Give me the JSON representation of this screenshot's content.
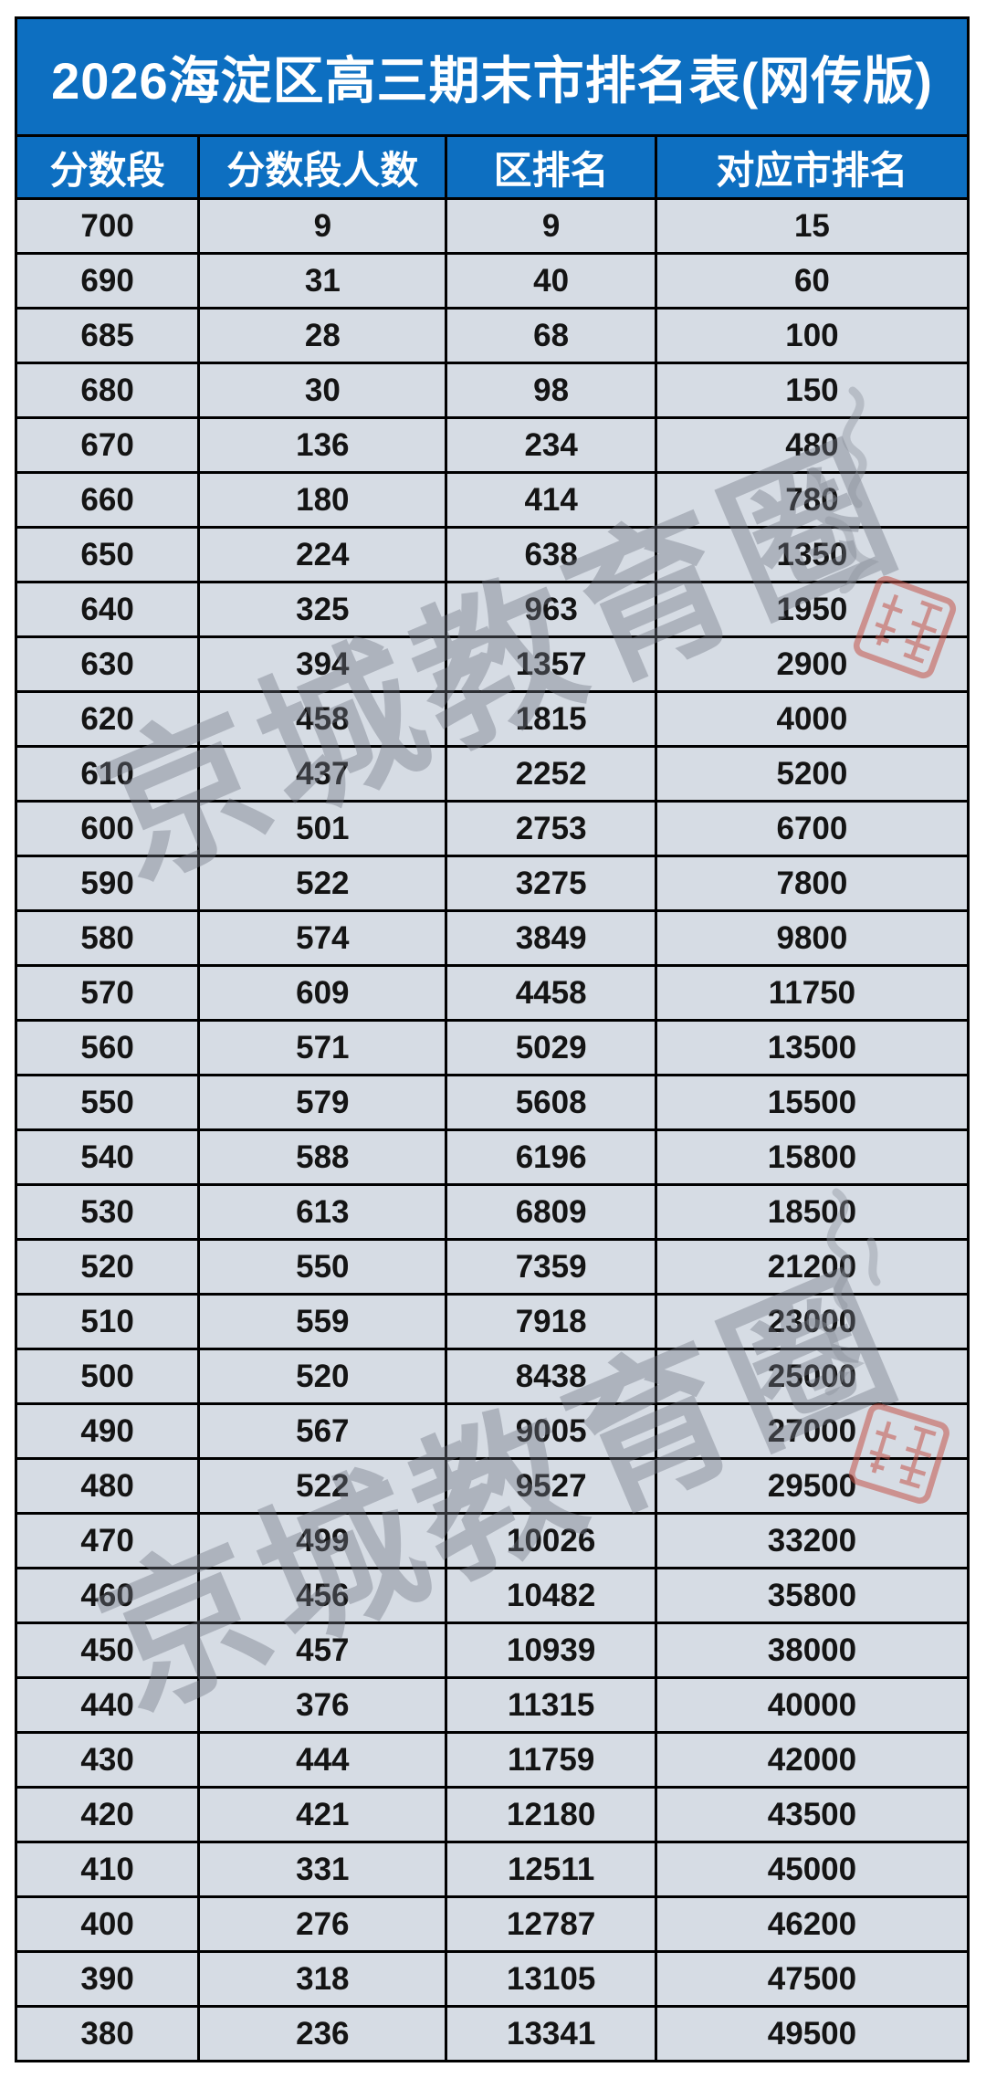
{
  "title": "2026海淀区高三期末市排名表(网传版)",
  "table": {
    "columns": [
      "分数段",
      "分数段人数",
      "区排名",
      "对应市排名"
    ],
    "rows": [
      [
        700,
        9,
        9,
        15
      ],
      [
        690,
        31,
        40,
        60
      ],
      [
        685,
        28,
        68,
        100
      ],
      [
        680,
        30,
        98,
        150
      ],
      [
        670,
        136,
        234,
        480
      ],
      [
        660,
        180,
        414,
        780
      ],
      [
        650,
        224,
        638,
        1350
      ],
      [
        640,
        325,
        963,
        1950
      ],
      [
        630,
        394,
        1357,
        2900
      ],
      [
        620,
        458,
        1815,
        4000
      ],
      [
        610,
        437,
        2252,
        5200
      ],
      [
        600,
        501,
        2753,
        6700
      ],
      [
        590,
        522,
        3275,
        7800
      ],
      [
        580,
        574,
        3849,
        9800
      ],
      [
        570,
        609,
        4458,
        11750
      ],
      [
        560,
        571,
        5029,
        13500
      ],
      [
        550,
        579,
        5608,
        15500
      ],
      [
        540,
        588,
        6196,
        15800
      ],
      [
        530,
        613,
        6809,
        18500
      ],
      [
        520,
        550,
        7359,
        21200
      ],
      [
        510,
        559,
        7918,
        23000
      ],
      [
        500,
        520,
        8438,
        25000
      ],
      [
        490,
        567,
        9005,
        27000
      ],
      [
        480,
        522,
        9527,
        29500
      ],
      [
        470,
        499,
        10026,
        33200
      ],
      [
        460,
        456,
        10482,
        35800
      ],
      [
        450,
        457,
        10939,
        38000
      ],
      [
        440,
        376,
        11315,
        40000
      ],
      [
        430,
        444,
        11759,
        42000
      ],
      [
        420,
        421,
        12180,
        43500
      ],
      [
        410,
        331,
        12511,
        45000
      ],
      [
        400,
        276,
        12787,
        46200
      ],
      [
        390,
        318,
        13105,
        47500
      ],
      [
        380,
        236,
        13341,
        49500
      ]
    ]
  },
  "watermark": {
    "text": "京城教育圈"
  },
  "colors": {
    "header_blue": "#0d6fc1",
    "row_background": "#d6dce4",
    "border_black": "#000000",
    "title_text": "#ffffff",
    "cell_text": "#141414",
    "watermark_gray": "#707682",
    "seal_red": "#c4544a"
  }
}
